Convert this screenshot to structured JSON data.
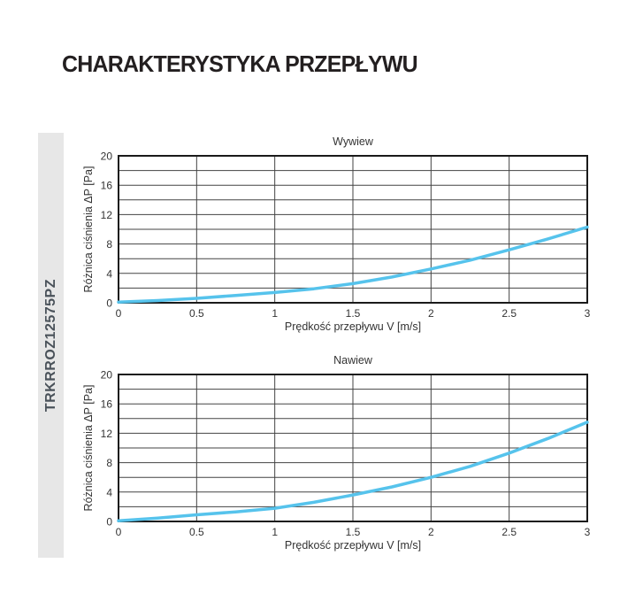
{
  "page": {
    "title": "CHARAKTERYSTYKA PRZEPŁYWU",
    "background": "#ffffff"
  },
  "sidebar": {
    "model": "TRKRROZ12575PZ",
    "bg_color": "#e7e7e7",
    "text_color": "#4a525a"
  },
  "chart_style": {
    "curve_color": "#56c3ec",
    "grid_color": "#434343",
    "border_color": "#1a1a1a",
    "text_color": "#333333",
    "curve_width": 3.5
  },
  "chart_data": [
    {
      "type": "line",
      "title": "Wywiew",
      "xlabel": "Prędkość przepływu V [m/s]",
      "ylabel": "Różnica ciśnienia ΔP [Pa]",
      "xlim": [
        0,
        3
      ],
      "ylim": [
        0,
        20
      ],
      "x_ticks": [
        0,
        0.5,
        1,
        1.5,
        2,
        2.5,
        3
      ],
      "x_tick_labels": [
        "0",
        "0.5",
        "1",
        "1.5",
        "2",
        "2.5",
        "3"
      ],
      "y_ticks": [
        0,
        4,
        8,
        12,
        16,
        20
      ],
      "y_grid_step": 2,
      "grid": "on",
      "legend": "none",
      "series": [
        {
          "name": "ΔP wywiew",
          "x": [
            0,
            0.25,
            0.5,
            0.75,
            1,
            1.25,
            1.5,
            1.75,
            2,
            2.25,
            2.5,
            2.75,
            3
          ],
          "y": [
            0.1,
            0.3,
            0.6,
            1.0,
            1.4,
            1.9,
            2.6,
            3.5,
            4.6,
            5.8,
            7.2,
            8.7,
            10.3
          ]
        }
      ]
    },
    {
      "type": "line",
      "title": "Nawiew",
      "xlabel": "Prędkość przepływu V [m/s]",
      "ylabel": "Różnica ciśnienia ΔP [Pa]",
      "xlim": [
        0,
        3
      ],
      "ylim": [
        0,
        20
      ],
      "x_ticks": [
        0,
        0.5,
        1,
        1.5,
        2,
        2.5,
        3
      ],
      "x_tick_labels": [
        "0",
        "0.5",
        "1",
        "1.5",
        "2",
        "2.5",
        "3"
      ],
      "y_ticks": [
        0,
        4,
        8,
        12,
        16,
        20
      ],
      "y_grid_step": 2,
      "grid": "on",
      "legend": "none",
      "series": [
        {
          "name": "ΔP nawiew",
          "x": [
            0,
            0.25,
            0.5,
            0.75,
            1,
            1.25,
            1.5,
            1.75,
            2,
            2.25,
            2.5,
            2.75,
            3
          ],
          "y": [
            0.1,
            0.45,
            0.9,
            1.3,
            1.8,
            2.6,
            3.6,
            4.7,
            6.0,
            7.5,
            9.3,
            11.3,
            13.5
          ]
        }
      ]
    }
  ]
}
